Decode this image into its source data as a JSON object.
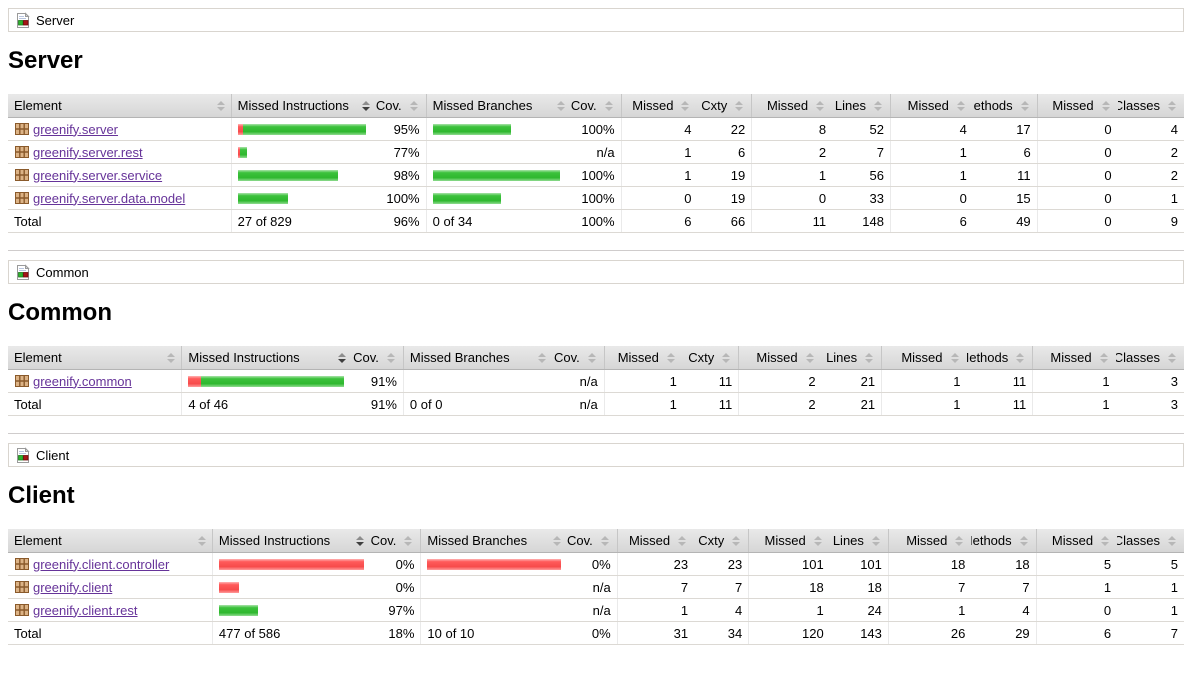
{
  "columns": {
    "element": "Element",
    "missed_instructions": "Missed Instructions",
    "cov1": "Cov.",
    "missed_branches": "Missed Branches",
    "cov2": "Cov.",
    "missed1": "Missed",
    "cxty": "Cxty",
    "missed2": "Missed",
    "lines": "Lines",
    "missed3": "Missed",
    "methods": "Methods",
    "missed4": "Missed",
    "classes": "Classes"
  },
  "sort": {
    "active_column": "Missed Instructions",
    "direction": "descending"
  },
  "colors": {
    "covered_bar": "#2eb82e",
    "missed_bar": "#ff5a5a",
    "link": "#663399",
    "header_bg": "#e0e0e0"
  },
  "sections": [
    {
      "breadcrumb": "Server",
      "title": "Server",
      "rows": [
        {
          "name": "greenify.server",
          "instr_red": 4,
          "instr_green": 93,
          "instr_cov": "95%",
          "branch_red": 0,
          "branch_green": 59,
          "branch_cov": "100%",
          "missed_cxty": "4",
          "cxty": "22",
          "missed_lines": "8",
          "lines": "52",
          "missed_methods": "4",
          "methods": "17",
          "missed_classes": "0",
          "classes": "4"
        },
        {
          "name": "greenify.server.rest",
          "instr_red": 2,
          "instr_green": 5,
          "instr_cov": "77%",
          "branch_red": 0,
          "branch_green": 0,
          "branch_cov": "n/a",
          "missed_cxty": "1",
          "cxty": "6",
          "missed_lines": "2",
          "lines": "7",
          "missed_methods": "1",
          "methods": "6",
          "missed_classes": "0",
          "classes": "2"
        },
        {
          "name": "greenify.server.service",
          "instr_red": 0,
          "instr_green": 76,
          "instr_cov": "98%",
          "branch_red": 0,
          "branch_green": 96,
          "branch_cov": "100%",
          "missed_cxty": "1",
          "cxty": "19",
          "missed_lines": "1",
          "lines": "56",
          "missed_methods": "1",
          "methods": "11",
          "missed_classes": "0",
          "classes": "2"
        },
        {
          "name": "greenify.server.data.model",
          "instr_red": 0,
          "instr_green": 38,
          "instr_cov": "100%",
          "branch_red": 0,
          "branch_green": 52,
          "branch_cov": "100%",
          "missed_cxty": "0",
          "cxty": "19",
          "missed_lines": "0",
          "lines": "33",
          "missed_methods": "0",
          "methods": "15",
          "missed_classes": "0",
          "classes": "1"
        }
      ],
      "total": {
        "label": "Total",
        "instr": "27 of 829",
        "instr_cov": "96%",
        "branch": "0 of 34",
        "branch_cov": "100%",
        "missed_cxty": "6",
        "cxty": "66",
        "missed_lines": "11",
        "lines": "148",
        "missed_methods": "6",
        "methods": "49",
        "missed_classes": "0",
        "classes": "9"
      }
    },
    {
      "breadcrumb": "Common",
      "title": "Common",
      "rows": [
        {
          "name": "greenify.common",
          "instr_red": 8,
          "instr_green": 91,
          "instr_cov": "91%",
          "branch_red": 0,
          "branch_green": 0,
          "branch_cov": "n/a",
          "missed_cxty": "1",
          "cxty": "11",
          "missed_lines": "2",
          "lines": "21",
          "missed_methods": "1",
          "methods": "11",
          "missed_classes": "1",
          "classes": "3"
        }
      ],
      "total": {
        "label": "Total",
        "instr": "4 of 46",
        "instr_cov": "91%",
        "branch": "0 of 0",
        "branch_cov": "n/a",
        "missed_cxty": "1",
        "cxty": "11",
        "missed_lines": "2",
        "lines": "21",
        "missed_methods": "1",
        "methods": "11",
        "missed_classes": "1",
        "classes": "3"
      }
    },
    {
      "breadcrumb": "Client",
      "title": "Client",
      "rows": [
        {
          "name": "greenify.client.controller",
          "instr_red": 100,
          "instr_green": 0,
          "instr_cov": "0%",
          "branch_red": 100,
          "branch_green": 0,
          "branch_cov": "0%",
          "missed_cxty": "23",
          "cxty": "23",
          "missed_lines": "101",
          "lines": "101",
          "missed_methods": "18",
          "methods": "18",
          "missed_classes": "5",
          "classes": "5"
        },
        {
          "name": "greenify.client",
          "instr_red": 14,
          "instr_green": 0,
          "instr_cov": "0%",
          "branch_red": 0,
          "branch_green": 0,
          "branch_cov": "n/a",
          "missed_cxty": "7",
          "cxty": "7",
          "missed_lines": "18",
          "lines": "18",
          "missed_methods": "7",
          "methods": "7",
          "missed_classes": "1",
          "classes": "1"
        },
        {
          "name": "greenify.client.rest",
          "instr_red": 0,
          "instr_green": 27,
          "instr_cov": "97%",
          "branch_red": 0,
          "branch_green": 0,
          "branch_cov": "n/a",
          "missed_cxty": "1",
          "cxty": "4",
          "missed_lines": "1",
          "lines": "24",
          "missed_methods": "1",
          "methods": "4",
          "missed_classes": "0",
          "classes": "1"
        }
      ],
      "total": {
        "label": "Total",
        "instr": "477 of 586",
        "instr_cov": "18%",
        "branch": "10 of 10",
        "branch_cov": "0%",
        "missed_cxty": "31",
        "cxty": "34",
        "missed_lines": "120",
        "lines": "143",
        "missed_methods": "26",
        "methods": "29",
        "missed_classes": "6",
        "classes": "7"
      }
    }
  ]
}
